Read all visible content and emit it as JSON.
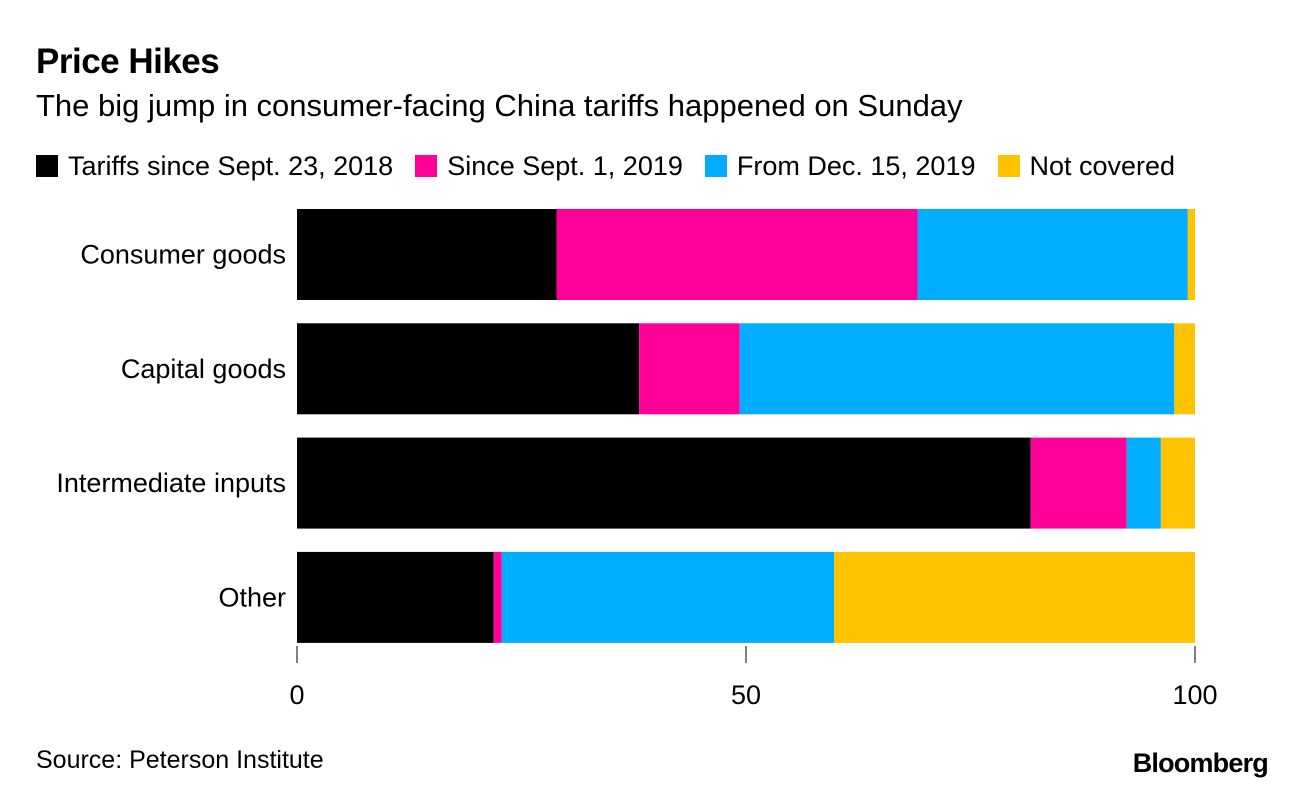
{
  "chart_data": {
    "type": "bar",
    "orientation": "horizontal",
    "stacked": true,
    "title": "Price Hikes",
    "subtitle": "The big jump in consumer-facing China tariffs happened on Sunday",
    "categories": [
      "Consumer goods",
      "Capital goods",
      "Intermediate inputs",
      "Other"
    ],
    "series": [
      {
        "name": "Tariffs since Sept. 23, 2018",
        "color": "#000000",
        "values": [
          28.9,
          38.1,
          81.7,
          21.9
        ]
      },
      {
        "name": "Since Sept. 1, 2019",
        "color": "#ff0099",
        "values": [
          40.2,
          11.2,
          10.7,
          0.9
        ]
      },
      {
        "name": "From Dec. 15, 2019",
        "color": "#00adff",
        "values": [
          30.1,
          48.4,
          3.8,
          37.0
        ]
      },
      {
        "name": "Not covered",
        "color": "#ffc300",
        "values": [
          0.8,
          2.3,
          3.8,
          40.2
        ]
      }
    ],
    "xlim": [
      0,
      100
    ],
    "xticks": [
      0,
      50,
      100
    ],
    "xtick_labels": [
      "0",
      "50",
      "100"
    ],
    "xlabel": "",
    "ylabel": "",
    "grid": false,
    "legend_position": "top"
  },
  "source": "Source: Peterson Institute",
  "brand": "Bloomberg"
}
